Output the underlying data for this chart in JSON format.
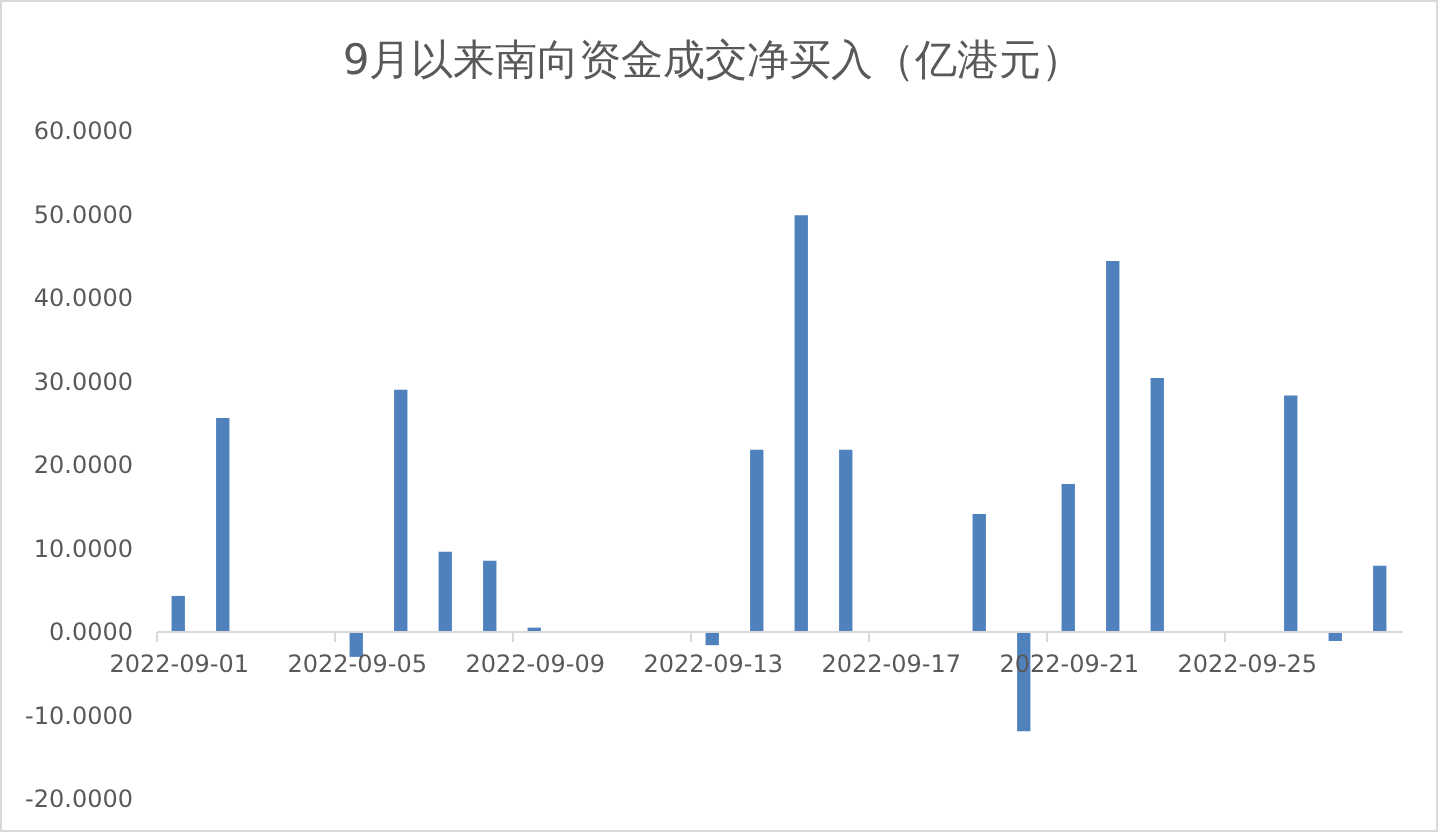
{
  "chart_data": {
    "type": "bar",
    "title": "9月以来南向资金成交净买入（亿港元）",
    "x": [
      "2022-09-01",
      "2022-09-02",
      "2022-09-05",
      "2022-09-06",
      "2022-09-07",
      "2022-09-08",
      "2022-09-09",
      "2022-09-13",
      "2022-09-14",
      "2022-09-15",
      "2022-09-16",
      "2022-09-19",
      "2022-09-20",
      "2022-09-21",
      "2022-09-22",
      "2022-09-23",
      "2022-09-26",
      "2022-09-27",
      "2022-09-28"
    ],
    "values": [
      4.2,
      25.5,
      -3.1,
      28.9,
      9.5,
      8.4,
      0.4,
      -1.7,
      21.7,
      49.8,
      21.7,
      14.0,
      -12.0,
      17.6,
      44.3,
      30.3,
      28.2,
      -1.2,
      7.8
    ],
    "color": "#4f81bd",
    "xlim": [
      "2022-08-31T12:00",
      "2022-09-28T12:00"
    ],
    "xticks": [
      "2022-09-01",
      "2022-09-05",
      "2022-09-09",
      "2022-09-13",
      "2022-09-17",
      "2022-09-21",
      "2022-09-25"
    ],
    "ylim": [
      -20,
      60
    ],
    "yticks": [
      {
        "value": -20,
        "label": "-20.0000"
      },
      {
        "value": -10,
        "label": "-10.0000"
      },
      {
        "value": 0,
        "label": "0.0000"
      },
      {
        "value": 10,
        "label": "10.0000"
      },
      {
        "value": 20,
        "label": "20.0000"
      },
      {
        "value": 30,
        "label": "30.0000"
      },
      {
        "value": 40,
        "label": "40.0000"
      },
      {
        "value": 50,
        "label": "50.0000"
      },
      {
        "value": 60,
        "label": "60.0000"
      }
    ]
  }
}
